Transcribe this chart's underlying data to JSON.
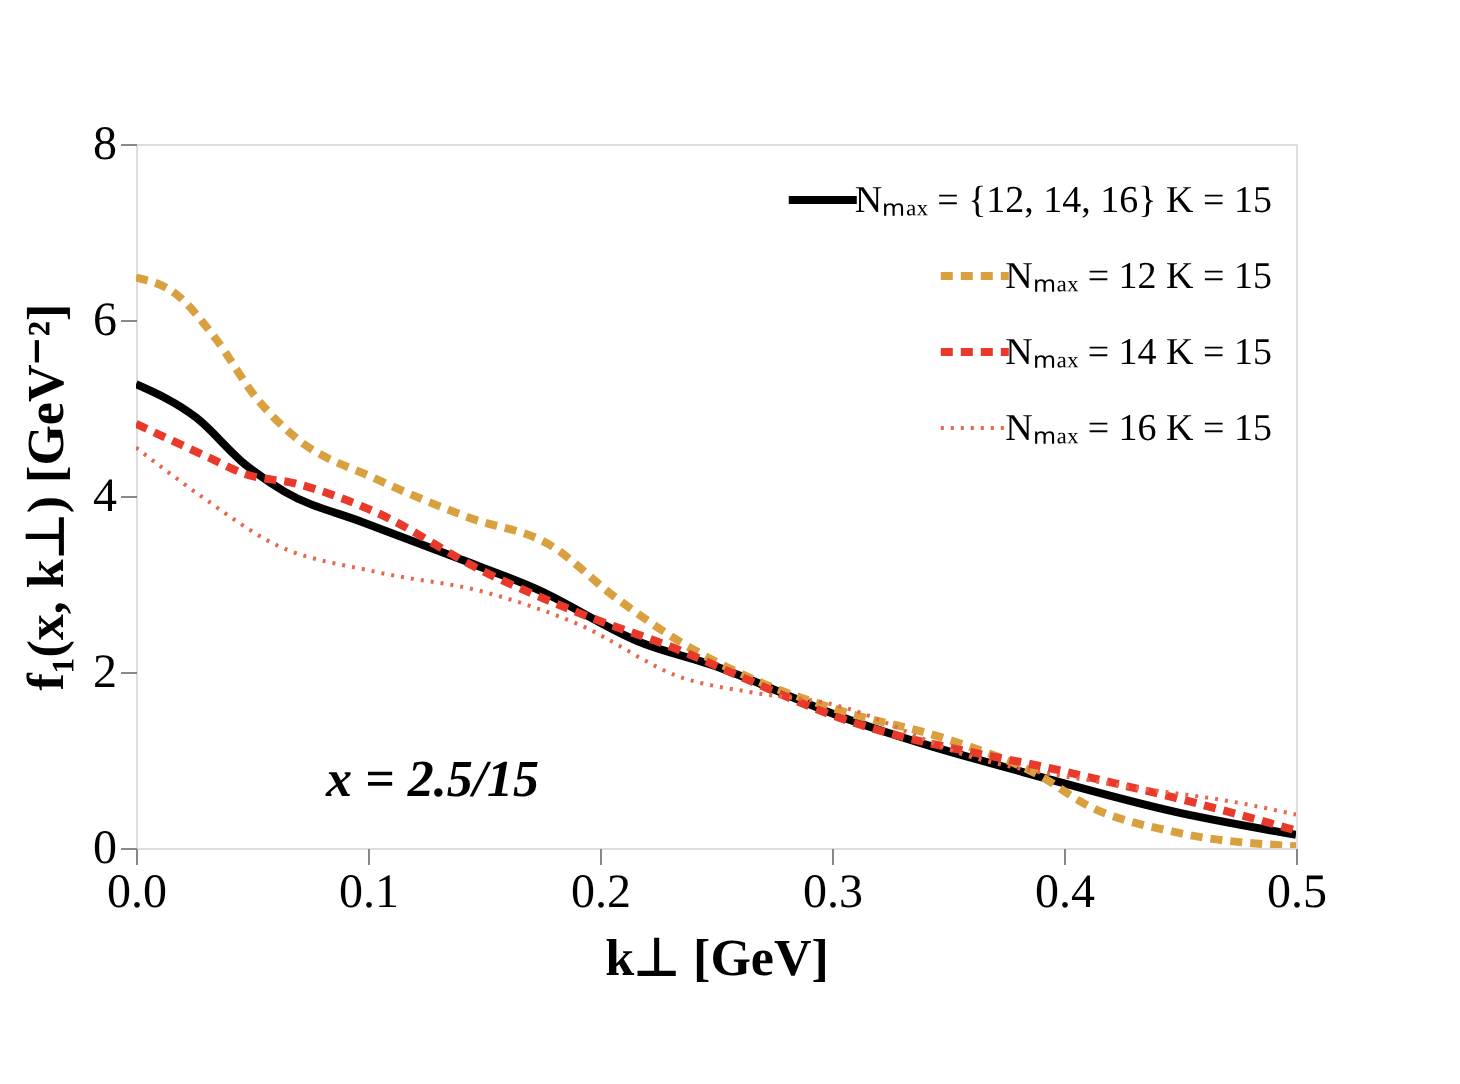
{
  "chart_data": {
    "type": "line",
    "xlabel": "k⊥ [GeV]",
    "ylabel": "f₁(x, k⊥) [GeV⁻²]",
    "xlim": [
      0,
      0.5
    ],
    "xticks": [
      {
        "value": 0,
        "label": "0.0"
      },
      0.1,
      0.2,
      0.3,
      0.4,
      0.5
    ],
    "ylim": [
      0,
      8
    ],
    "yticks": [
      0,
      2,
      4,
      6,
      8
    ],
    "grid": false,
    "legend": "top right",
    "annotations": [
      "x = 2.5/15"
    ],
    "series": [
      {
        "name": "Nₘₐₓ = {12, 14, 16} K = 15",
        "color": "#000000",
        "line_style": "solid",
        "x": [
          0,
          0.026,
          0.047,
          0.064,
          0.098,
          0.138,
          0.172,
          0.219,
          0.247,
          0.305,
          0.391,
          0.448,
          0.5
        ],
        "values": [
          5.27,
          4.89,
          4.36,
          4.05,
          3.7,
          3.3,
          2.95,
          2.32,
          2.09,
          1.48,
          0.8,
          0.41,
          0.15
        ]
      },
      {
        "name": "Nₘₐₓ = 12 K = 15",
        "color": "#d9a040",
        "line_style": "dashed",
        "x": [
          0,
          0.017,
          0.034,
          0.052,
          0.069,
          0.103,
          0.144,
          0.178,
          0.207,
          0.236,
          0.265,
          0.305,
          0.348,
          0.391,
          0.409,
          0.448,
          0.5
        ],
        "values": [
          6.48,
          6.3,
          5.8,
          5.11,
          4.66,
          4.2,
          3.75,
          3.45,
          2.84,
          2.32,
          1.93,
          1.55,
          1.25,
          0.8,
          0.5,
          0.18,
          0.02
        ]
      },
      {
        "name": "Nₘₐₓ = 14 K = 15",
        "color": "#e8392a",
        "line_style": "dashed",
        "x": [
          0,
          0.032,
          0.047,
          0.069,
          0.103,
          0.15,
          0.19,
          0.236,
          0.262,
          0.299,
          0.405,
          0.448,
          0.5
        ],
        "values": [
          4.82,
          4.43,
          4.25,
          4.14,
          3.82,
          3.14,
          2.68,
          2.23,
          1.93,
          1.52,
          0.84,
          0.57,
          0.2
        ]
      },
      {
        "name": "Nₘₐₓ = 16 K = 15",
        "color": "#e8674a",
        "line_style": "dotted",
        "x": [
          0,
          0.029,
          0.06,
          0.103,
          0.15,
          0.19,
          0.236,
          0.265,
          0.299,
          0.362,
          0.42,
          0.478,
          0.5
        ],
        "values": [
          4.55,
          3.98,
          3.45,
          3.14,
          2.91,
          2.55,
          1.93,
          1.77,
          1.64,
          1.02,
          0.73,
          0.5,
          0.38
        ]
      }
    ]
  }
}
